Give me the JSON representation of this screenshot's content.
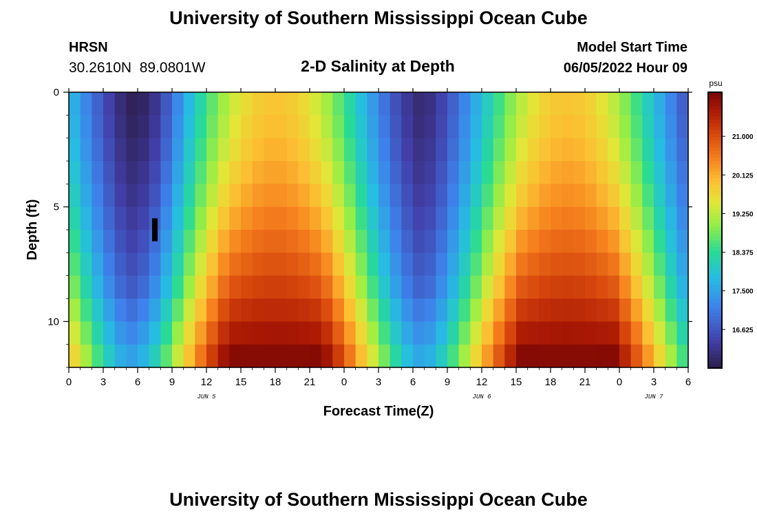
{
  "header": {
    "title": "University of Southern Mississippi Ocean Cube",
    "station": "HRSN",
    "coords": "30.2610N  89.0801W",
    "subtitle": "2-D Salinity at Depth",
    "start_label": "Model Start Time",
    "start_value": "06/05/2022 Hour 09"
  },
  "footer": {
    "title": "University of Southern Mississippi Ocean Cube"
  },
  "chart_data": {
    "type": "heatmap",
    "title": "2-D Salinity at Depth",
    "xlabel": "Forecast Time(Z)",
    "ylabel": "Depth (ft)",
    "x_range_hours": [
      0,
      54
    ],
    "y_range_ft": [
      0,
      12
    ],
    "x_ticks": [
      "0",
      "3",
      "6",
      "9",
      "12",
      "15",
      "18",
      "21",
      "0",
      "3",
      "6",
      "9",
      "12",
      "15",
      "18",
      "21",
      "0",
      "3",
      "6"
    ],
    "x_tick_hours": [
      0,
      3,
      6,
      9,
      12,
      15,
      18,
      21,
      24,
      27,
      30,
      33,
      36,
      39,
      42,
      45,
      48,
      51,
      54
    ],
    "day_labels": [
      {
        "text": "JUN 5",
        "hour": 12
      },
      {
        "text": "JUN 6",
        "hour": 36
      },
      {
        "text": "JUN 7",
        "hour": 51
      }
    ],
    "y_ticks": [
      "0",
      "5",
      "10"
    ],
    "y_tick_values": [
      0,
      5,
      10
    ],
    "colorbar": {
      "unit": "psu",
      "min": 15.75,
      "max": 22.0,
      "ticks": [
        "21.000",
        "20.125",
        "19.250",
        "18.375",
        "17.500",
        "16.625"
      ],
      "tick_values": [
        21.0,
        20.125,
        19.25,
        18.375,
        17.5,
        16.625
      ]
    },
    "model": {
      "surface_salinity_min": 16.0,
      "surface_salinity_max": 19.9,
      "bottom_salinity_min": 17.0,
      "bottom_salinity_max": 22.0,
      "fresh_events": [
        {
          "center_hour": 7.5,
          "width_hours": 4.5,
          "extra_fresh": 0.4
        },
        {
          "center_hour": 29,
          "width_hours": 12,
          "extra_fresh": 0
        }
      ]
    },
    "marker": {
      "hour": 7.5,
      "depth_from": 5.5,
      "depth_to": 6.5,
      "label": "data marker"
    }
  }
}
